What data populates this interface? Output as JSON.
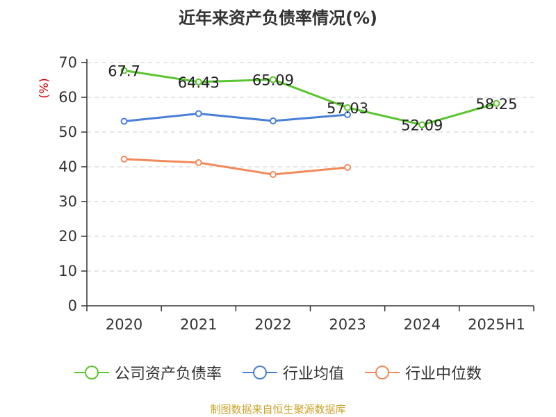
{
  "chart_data": {
    "type": "line",
    "title": "近年来资产负债率情况(%)",
    "ylabel": "(%)",
    "xlabel": "",
    "categories": [
      "2020",
      "2021",
      "2022",
      "2023",
      "2024",
      "2025H1"
    ],
    "ylim": [
      0,
      70
    ],
    "yticks": [
      0,
      10,
      20,
      30,
      40,
      50,
      60,
      70
    ],
    "grid": true,
    "legend_position": "bottom",
    "series": [
      {
        "name": "公司资产负债率",
        "color": "#5ac52e",
        "values": [
          67.7,
          64.43,
          65.09,
          57.03,
          52.09,
          58.25
        ],
        "labels": [
          "67.7",
          "64.43",
          "65.09",
          "57.03",
          "52.09",
          "58.25"
        ],
        "show_labels": true
      },
      {
        "name": "行业均值",
        "color": "#4a7fd8",
        "values": [
          53.1,
          55.3,
          53.2,
          55.0,
          null,
          null
        ],
        "show_labels": false
      },
      {
        "name": "行业中位数",
        "color": "#f08a5a",
        "values": [
          42.2,
          41.2,
          37.8,
          39.8,
          null,
          null
        ],
        "show_labels": false
      }
    ],
    "source": "制图数据来自恒生聚源数据库"
  }
}
